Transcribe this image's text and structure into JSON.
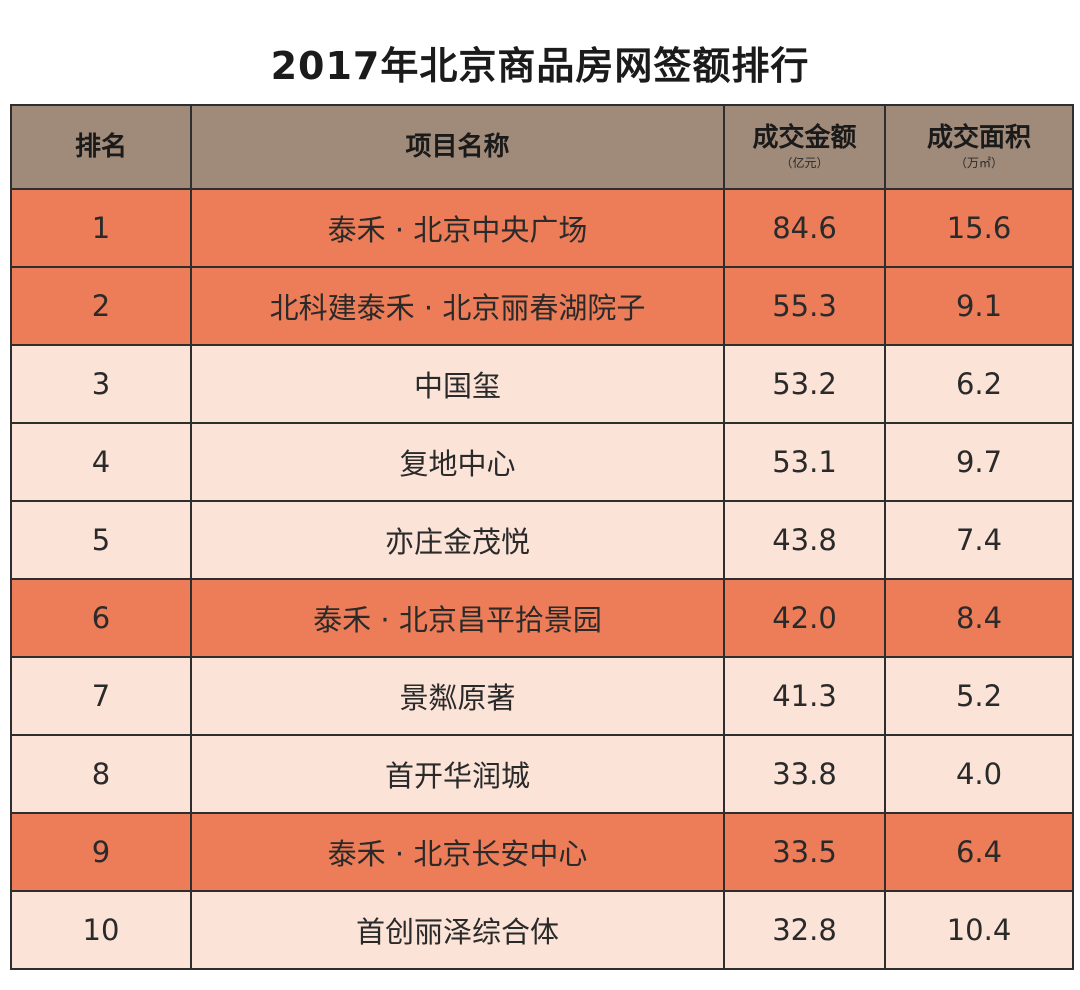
{
  "title": "2017年北京商品房网签额排行",
  "colors": {
    "header_bg": "#a08a7a",
    "highlight_row": "#ec7d58",
    "plain_row": "#fbe3d7",
    "border": "#2e2e2e"
  },
  "chart_data": {
    "type": "table",
    "title": "2017年北京商品房网签额排行",
    "columns": [
      {
        "label": "排名",
        "unit": ""
      },
      {
        "label": "项目名称",
        "unit": ""
      },
      {
        "label": "成交金额",
        "unit": "（亿元）"
      },
      {
        "label": "成交面积",
        "unit": "（万㎡）"
      }
    ],
    "rows": [
      {
        "rank": "1",
        "name": "泰禾 · 北京中央广场",
        "amount": "84.6",
        "area": "15.6",
        "highlight": true
      },
      {
        "rank": "2",
        "name": "北科建泰禾 · 北京丽春湖院子",
        "amount": "55.3",
        "area": "9.1",
        "highlight": true
      },
      {
        "rank": "3",
        "name": "中国玺",
        "amount": "53.2",
        "area": "6.2",
        "highlight": false
      },
      {
        "rank": "4",
        "name": "复地中心",
        "amount": "53.1",
        "area": "9.7",
        "highlight": false
      },
      {
        "rank": "5",
        "name": "亦庄金茂悦",
        "amount": "43.8",
        "area": "7.4",
        "highlight": false
      },
      {
        "rank": "6",
        "name": "泰禾 · 北京昌平拾景园",
        "amount": "42.0",
        "area": "8.4",
        "highlight": true
      },
      {
        "rank": "7",
        "name": "景粼原著",
        "amount": "41.3",
        "area": "5.2",
        "highlight": false
      },
      {
        "rank": "8",
        "name": "首开华润城",
        "amount": "33.8",
        "area": "4.0",
        "highlight": false
      },
      {
        "rank": "9",
        "name": "泰禾 · 北京长安中心",
        "amount": "33.5",
        "area": "6.4",
        "highlight": true
      },
      {
        "rank": "10",
        "name": "首创丽泽综合体",
        "amount": "32.8",
        "area": "10.4",
        "highlight": false
      }
    ]
  }
}
